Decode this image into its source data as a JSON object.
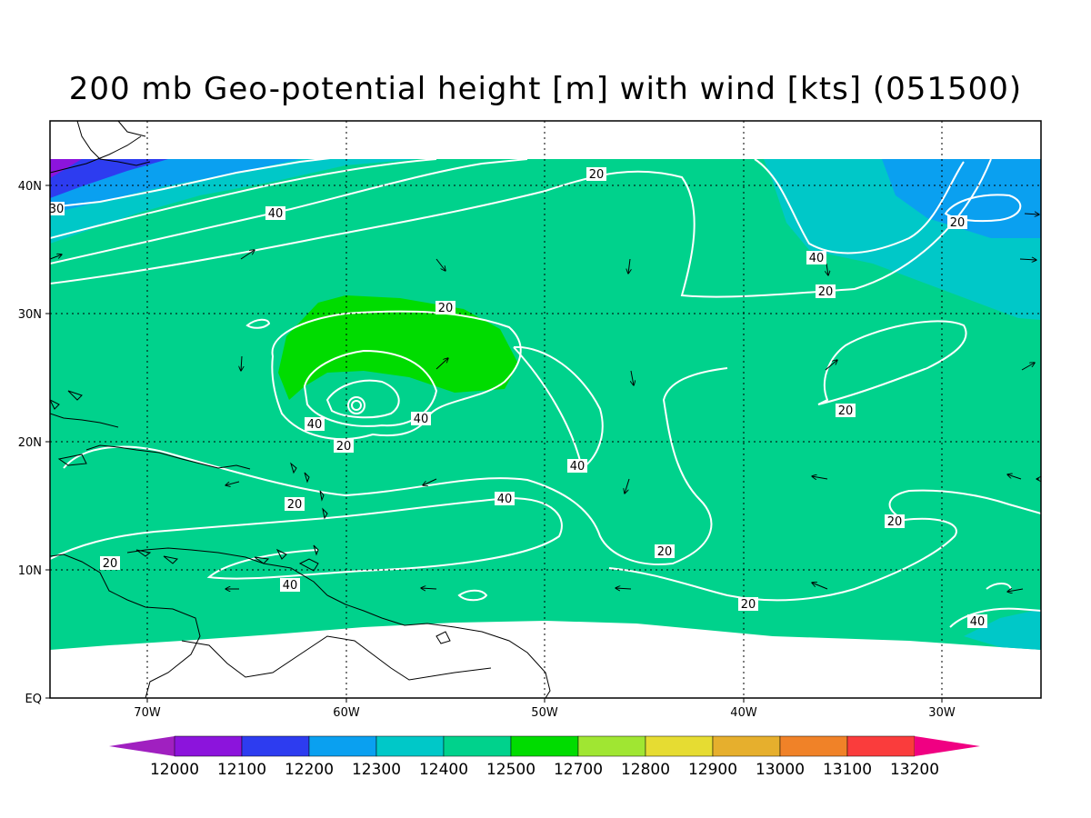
{
  "title": "200 mb Geo-potential height [m] with wind [kts] (051500)",
  "latitude_labels": [
    "40N",
    "30N",
    "20N",
    "10N",
    "EQ"
  ],
  "longitude_labels": [
    "70W",
    "60W",
    "50W",
    "40W",
    "30W"
  ],
  "isotach_labels": [
    "20",
    "20",
    "20",
    "20",
    "20",
    "20",
    "20",
    "20",
    "20",
    "20",
    "20",
    "40",
    "40",
    "40",
    "40",
    "40",
    "40",
    "40",
    "40",
    "30"
  ],
  "colorbar": {
    "values": [
      "12000",
      "12100",
      "12200",
      "12300",
      "12400",
      "12500",
      "12700",
      "12800",
      "12900",
      "13000",
      "13100",
      "13200"
    ],
    "colors": [
      "#a020c0",
      "#8c14dc",
      "#2d3cf0",
      "#0aa0f0",
      "#00c8c8",
      "#00d28c",
      "#00dc00",
      "#a0e632",
      "#e6dc32",
      "#e6af2d",
      "#f08228",
      "#fa3c3c",
      "#f00082"
    ]
  },
  "fill_colors": {
    "band_12200": "#2d3cf0",
    "band_12300": "#0aa0f0",
    "band_12400": "#00c8c8",
    "band_12500": "#00d28c",
    "band_12700": "#00dc00",
    "contour": "#ffffff",
    "coast": "#000000"
  }
}
